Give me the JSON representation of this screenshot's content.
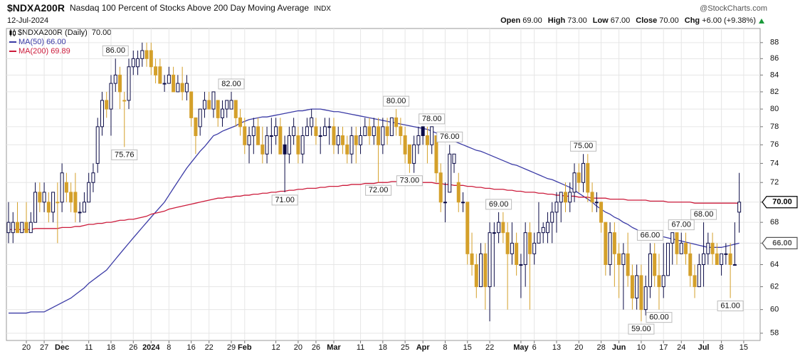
{
  "chart_data": {
    "type": "candlestick",
    "title": "$NDXA200R",
    "subtitle": "Nasdaq 100 Percent of Stocks Above 200 Day Moving Average",
    "exchange": "INDX",
    "source": "@StockCharts.com",
    "date": "12-Jul-2024",
    "quote": [
      {
        "name": "Open",
        "value": "69.00"
      },
      {
        "name": "High",
        "value": "73.00"
      },
      {
        "name": "Low",
        "value": "67.00"
      },
      {
        "name": "Close",
        "value": "70.00"
      },
      {
        "name": "Chg",
        "value": "+6.00 (+9.38%)"
      }
    ],
    "categories": [
      null,
      null,
      null,
      null,
      "20",
      null,
      null,
      null,
      "27",
      null,
      null,
      null,
      "Dec",
      null,
      null,
      null,
      null,
      null,
      "11",
      null,
      null,
      null,
      null,
      "18",
      null,
      null,
      null,
      null,
      "26",
      null,
      null,
      null,
      "2024",
      null,
      null,
      null,
      "8",
      null,
      null,
      null,
      null,
      "16",
      null,
      null,
      null,
      "22",
      null,
      null,
      null,
      null,
      "29",
      null,
      null,
      "Feb",
      null,
      null,
      null,
      null,
      null,
      null,
      "12",
      null,
      null,
      null,
      null,
      "20",
      null,
      null,
      null,
      "26",
      null,
      null,
      null,
      "Mar",
      null,
      null,
      null,
      null,
      null,
      "11",
      null,
      null,
      null,
      null,
      "18",
      null,
      null,
      null,
      null,
      "25",
      null,
      null,
      null,
      "Apr",
      null,
      null,
      null,
      null,
      "8",
      null,
      null,
      null,
      null,
      "15",
      null,
      null,
      null,
      null,
      "22",
      null,
      null,
      null,
      null,
      null,
      null,
      "May",
      null,
      null,
      "6",
      null,
      null,
      null,
      null,
      "13",
      null,
      null,
      null,
      null,
      "20",
      null,
      null,
      null,
      null,
      "28",
      null,
      null,
      null,
      "Jun",
      null,
      null,
      null,
      null,
      "10",
      null,
      null,
      null,
      null,
      "17",
      null,
      null,
      null,
      "24",
      null,
      null,
      null,
      null,
      "Jul",
      null,
      null,
      null,
      "8",
      null,
      null,
      null,
      null,
      "15"
    ],
    "ohlc": {
      "name": "$NDXA200R (Daily)",
      "last_label": "70.00",
      "up_color": "#0b0b46",
      "down_color": "#d4a02a",
      "open": [
        67,
        67,
        68,
        67,
        68,
        67,
        68,
        71,
        70,
        70,
        69,
        70,
        70,
        72,
        71,
        71,
        69,
        69,
        70,
        72,
        74,
        78,
        81,
        80,
        83,
        84,
        81,
        81,
        85,
        85,
        86,
        87,
        87,
        85,
        85,
        83,
        83,
        84,
        82,
        83,
        82,
        82,
        79,
        78,
        80,
        81,
        80,
        81,
        79,
        80,
        80,
        81,
        79,
        78,
        76,
        77,
        78,
        76,
        75,
        77,
        77,
        78,
        76,
        75,
        77,
        77,
        75,
        77,
        78,
        78,
        77,
        77,
        78,
        78,
        76,
        77,
        76,
        75,
        77,
        76,
        77,
        78,
        77,
        78,
        76,
        78,
        77,
        79,
        78,
        77,
        76,
        74,
        76,
        78,
        77,
        76,
        77,
        73,
        70,
        71,
        74,
        72,
        70,
        70,
        65,
        64,
        62,
        65,
        62,
        67,
        67,
        68,
        67,
        65,
        66,
        64,
        64,
        67,
        65,
        66,
        67,
        67,
        68,
        69,
        70,
        71,
        70,
        71,
        73,
        72,
        74,
        71,
        70,
        70,
        68,
        64,
        67,
        65,
        64,
        65,
        63,
        61,
        63,
        60,
        62,
        65,
        63,
        62,
        63,
        66,
        67,
        65,
        66,
        65,
        63,
        62,
        64,
        65,
        66,
        65,
        64,
        65,
        65,
        64,
        69,
        null
      ],
      "high": [
        70,
        69,
        70,
        68,
        70,
        69,
        72,
        72,
        72,
        71,
        71,
        72,
        74,
        73,
        72,
        73,
        70,
        71,
        73,
        74,
        79,
        82,
        82,
        84,
        86,
        85,
        82,
        86,
        87,
        87,
        88,
        88,
        88,
        86,
        86,
        84,
        85,
        85,
        84,
        85,
        84,
        82,
        79,
        80,
        82,
        82,
        82,
        81,
        81,
        81,
        82,
        81,
        80,
        79,
        78,
        79,
        79,
        78,
        78,
        79,
        79,
        79,
        77,
        78,
        79,
        78,
        78,
        79,
        80,
        79,
        78,
        79,
        79,
        79,
        78,
        78,
        77,
        78,
        78,
        78,
        79,
        79,
        79,
        79,
        79,
        79,
        79,
        80,
        79,
        78,
        76,
        77,
        78,
        78,
        78,
        78,
        77,
        74,
        72,
        76,
        75,
        73,
        71,
        70,
        67,
        65,
        66,
        66,
        68,
        68,
        69,
        69,
        68,
        68,
        67,
        65,
        68,
        68,
        67,
        70,
        68,
        69,
        70,
        71,
        71,
        72,
        72,
        74,
        74,
        75,
        75,
        72,
        71,
        70,
        68,
        68,
        68,
        66,
        66,
        67,
        64,
        64,
        64,
        63,
        66,
        66,
        65,
        66,
        66,
        67,
        67,
        67,
        67,
        66,
        64,
        65,
        68,
        67,
        67,
        66,
        65,
        66,
        66,
        68,
        73,
        null
      ],
      "low": [
        66,
        66,
        67,
        67,
        67,
        67,
        68,
        69,
        69,
        68,
        68,
        66,
        69,
        70,
        69,
        68,
        68,
        69,
        70,
        71,
        73,
        77,
        79,
        77,
        82,
        80,
        75.76,
        80,
        84,
        84,
        85,
        85,
        84,
        83,
        83,
        82,
        83,
        82,
        82,
        81,
        81,
        78,
        75,
        77,
        79,
        80,
        79,
        78,
        78,
        79,
        80,
        78,
        77,
        75,
        74,
        75,
        76,
        74,
        74,
        75,
        76,
        75,
        71,
        74,
        76,
        74,
        74,
        77,
        77,
        76,
        75,
        77,
        76,
        75,
        75,
        75,
        74,
        74,
        74,
        75,
        77,
        76,
        76,
        72,
        75,
        76,
        77,
        77,
        76,
        74,
        73,
        73,
        75,
        76,
        74,
        75,
        72,
        69,
        68,
        71,
        73,
        69,
        69,
        64,
        63,
        61,
        62,
        60,
        59,
        62,
        66,
        66,
        60,
        64,
        63,
        61,
        62,
        60,
        64,
        66,
        66,
        66,
        66,
        67,
        68,
        69,
        69,
        70,
        71,
        71,
        70,
        69,
        69,
        67,
        63,
        63,
        62,
        61,
        60,
        62,
        60,
        60,
        59,
        59.5,
        61,
        62,
        60,
        61,
        63,
        64,
        64,
        65,
        64,
        62,
        61,
        62,
        62,
        64,
        64,
        64,
        63,
        64,
        61,
        64,
        67,
        null
      ],
      "close": [
        68,
        68,
        67,
        68,
        67,
        68,
        71,
        70,
        71,
        69,
        71,
        70,
        73,
        71,
        70,
        69,
        69,
        70,
        72,
        73,
        78,
        81,
        80,
        83,
        84,
        82,
        81,
        85,
        86,
        86,
        87,
        86,
        85,
        84,
        83,
        83,
        84,
        82,
        83,
        82,
        83,
        79,
        77,
        80,
        81,
        80,
        82,
        79,
        80,
        81,
        81,
        79,
        78,
        76,
        77,
        78,
        76,
        75,
        77,
        77,
        78,
        75,
        75,
        77,
        78,
        75,
        77,
        78,
        79,
        77,
        77,
        78,
        78,
        76,
        77,
        76,
        75,
        77,
        76,
        77,
        78,
        77,
        78,
        76,
        78,
        77,
        79,
        78,
        77,
        75,
        74,
        76,
        77,
        77,
        76,
        78,
        73,
        70,
        70,
        75,
        75,
        70,
        70,
        65,
        64,
        62,
        65,
        62,
        67,
        67,
        68,
        67,
        65,
        66,
        64,
        64,
        67,
        65,
        66,
        67,
        67.5,
        68,
        69,
        70,
        71,
        70,
        71,
        73,
        72,
        74,
        71,
        70,
        70,
        68,
        64,
        67,
        65,
        64,
        65,
        63,
        61,
        63,
        60,
        62,
        65,
        63,
        62,
        63,
        66,
        67,
        65,
        66,
        65,
        63,
        62,
        64,
        65,
        66,
        65,
        64,
        65,
        65,
        64,
        64,
        70,
        null
      ]
    },
    "series": [
      {
        "name": "MA(50)",
        "color": "#3b3ba6",
        "last_label": "66.00",
        "values": [
          59.7,
          59.7,
          59.7,
          59.7,
          59.7,
          59.8,
          59.8,
          59.8,
          59.8,
          60.0,
          60.2,
          60.4,
          60.6,
          60.8,
          61.0,
          61.3,
          61.6,
          61.9,
          62.3,
          62.6,
          62.9,
          63.2,
          63.5,
          64.0,
          64.5,
          65.0,
          65.5,
          66.0,
          66.5,
          67.0,
          67.5,
          68.0,
          68.5,
          69.0,
          69.5,
          70.0,
          70.7,
          71.4,
          72.1,
          72.8,
          73.5,
          74.1,
          74.7,
          75.3,
          75.8,
          76.4,
          77.0,
          77.2,
          77.5,
          77.7,
          77.9,
          78.1,
          78.4,
          78.6,
          78.8,
          78.9,
          79.0,
          79.1,
          79.1,
          79.2,
          79.3,
          79.4,
          79.5,
          79.6,
          79.7,
          79.8,
          79.8,
          79.9,
          80.0,
          80.0,
          80.0,
          79.9,
          79.8,
          79.7,
          79.7,
          79.6,
          79.5,
          79.4,
          79.3,
          79.2,
          79.1,
          79.0,
          78.9,
          78.8,
          78.7,
          78.6,
          78.5,
          78.4,
          78.3,
          78.2,
          78.1,
          78.0,
          77.9,
          77.8,
          77.7,
          77.5,
          77.3,
          77.1,
          76.9,
          76.6,
          76.4,
          76.2,
          76.0,
          75.8,
          75.6,
          75.4,
          75.3,
          75.1,
          74.9,
          74.7,
          74.5,
          74.3,
          74.1,
          73.9,
          73.8,
          73.6,
          73.4,
          73.2,
          73.0,
          72.8,
          72.6,
          72.4,
          72.3,
          72.1,
          71.9,
          71.7,
          71.5,
          71.2,
          70.9,
          70.6,
          70.3,
          70.0,
          69.6,
          69.3,
          69.0,
          68.8,
          68.5,
          68.3,
          68.0,
          67.8,
          67.5,
          67.3,
          67.0,
          66.9,
          66.8,
          66.7,
          66.6,
          66.6,
          66.5,
          66.4,
          66.3,
          66.2,
          66.1,
          66.0,
          65.9,
          65.8,
          65.7,
          65.6,
          65.6,
          65.6,
          65.6,
          65.7,
          65.8,
          65.9,
          66.0,
          null
        ]
      },
      {
        "name": "MA(200)",
        "color": "#cc1b3b",
        "last_label": "69.89",
        "values": [
          67.3,
          67.3,
          67.3,
          67.3,
          67.3,
          67.3,
          67.4,
          67.4,
          67.4,
          67.4,
          67.4,
          67.4,
          67.5,
          67.5,
          67.5,
          67.6,
          67.6,
          67.7,
          67.8,
          67.8,
          67.9,
          67.9,
          68.0,
          68.0,
          68.1,
          68.2,
          68.2,
          68.3,
          68.3,
          68.4,
          68.5,
          68.6,
          68.8,
          68.9,
          69.0,
          69.1,
          69.3,
          69.4,
          69.5,
          69.6,
          69.7,
          69.8,
          69.9,
          70.0,
          70.1,
          70.2,
          70.3,
          70.4,
          70.4,
          70.5,
          70.5,
          70.6,
          70.6,
          70.7,
          70.7,
          70.8,
          70.8,
          70.9,
          70.9,
          71.0,
          71.0,
          71.1,
          71.1,
          71.2,
          71.2,
          71.3,
          71.3,
          71.4,
          71.4,
          71.4,
          71.5,
          71.5,
          71.6,
          71.6,
          71.6,
          71.7,
          71.7,
          71.8,
          71.8,
          71.8,
          71.9,
          71.9,
          71.9,
          72.0,
          72.0,
          72.0,
          72.1,
          72.1,
          72.1,
          72.1,
          72.1,
          72.0,
          72.0,
          72.0,
          72.0,
          72.0,
          71.9,
          71.9,
          71.8,
          71.8,
          71.7,
          71.7,
          71.7,
          71.6,
          71.6,
          71.5,
          71.5,
          71.4,
          71.4,
          71.3,
          71.3,
          71.3,
          71.2,
          71.2,
          71.1,
          71.1,
          71.0,
          71.0,
          71.0,
          70.9,
          70.9,
          70.8,
          70.8,
          70.7,
          70.7,
          70.6,
          70.6,
          70.6,
          70.5,
          70.5,
          70.5,
          70.4,
          70.4,
          70.4,
          70.4,
          70.3,
          70.3,
          70.3,
          70.3,
          70.2,
          70.2,
          70.2,
          70.2,
          70.2,
          70.1,
          70.1,
          70.1,
          70.1,
          70.0,
          70.0,
          70.0,
          70.0,
          70.0,
          70.0,
          69.9,
          69.9,
          69.9,
          69.9,
          69.9,
          69.9,
          69.9,
          69.9,
          69.9,
          69.9,
          69.89,
          null
        ]
      }
    ],
    "annotations": [
      {
        "kind": "high",
        "index": 24,
        "label": "86.00"
      },
      {
        "kind": "low",
        "index": 26,
        "label": "75.76"
      },
      {
        "kind": "high",
        "index": 50,
        "label": "82.00"
      },
      {
        "kind": "low",
        "index": 62,
        "label": "71.00"
      },
      {
        "kind": "low",
        "index": 83,
        "label": "72.00"
      },
      {
        "kind": "high",
        "index": 87,
        "label": "80.00"
      },
      {
        "kind": "low",
        "index": 90,
        "label": "73.00"
      },
      {
        "kind": "high",
        "index": 95,
        "label": "78.00"
      },
      {
        "kind": "high",
        "index": 99,
        "label": "76.00"
      },
      {
        "kind": "high",
        "index": 110,
        "label": "69.00"
      },
      {
        "kind": "high",
        "index": 129,
        "label": "75.00"
      },
      {
        "kind": "low",
        "index": 142,
        "label": "59.00"
      },
      {
        "kind": "high",
        "index": 144,
        "label": "66.00"
      },
      {
        "kind": "low",
        "index": 146,
        "label": "60.00"
      },
      {
        "kind": "high",
        "index": 151,
        "label": "67.00"
      },
      {
        "kind": "high",
        "index": 156,
        "label": "68.00"
      },
      {
        "kind": "low",
        "index": 162,
        "label": "61.00"
      }
    ],
    "price_marks": [
      {
        "value": 70,
        "label": "70.00",
        "color": "#000000"
      },
      {
        "value": 66,
        "label": "66.00",
        "color": "#555555"
      }
    ],
    "ylim": [
      57.4,
      89.8
    ],
    "yticks": [
      58,
      60,
      62,
      64,
      66,
      68,
      70,
      72,
      74,
      76,
      78,
      80,
      82,
      84,
      86,
      88
    ],
    "log_y": true,
    "grid": true
  }
}
